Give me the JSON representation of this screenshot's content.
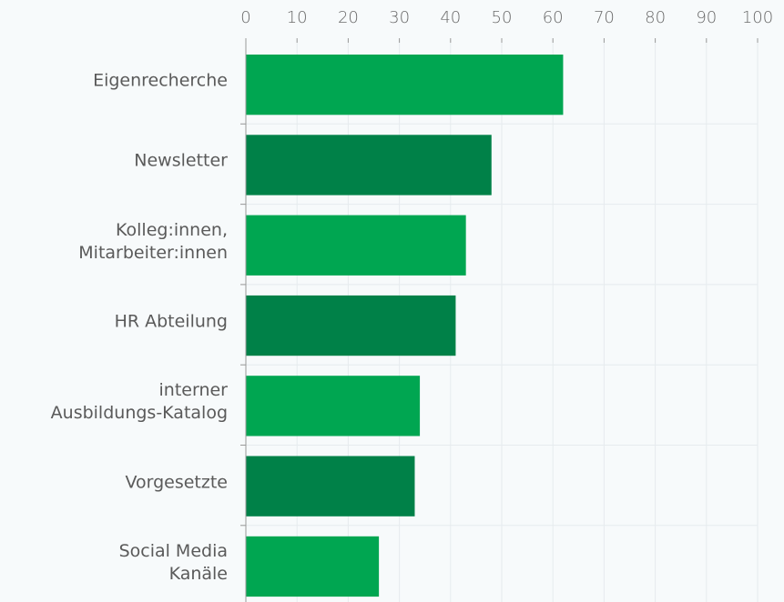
{
  "chart_data": {
    "type": "bar",
    "orientation": "horizontal",
    "categories": [
      "Eigenrecherche",
      "Newsletter",
      "Kolleg:innen,\nMitarbeiter:innen",
      "HR Abteilung",
      "interner\nAusbildungs-Katalog",
      "Vorgesetzte",
      "Social Media\nKanäle"
    ],
    "values": [
      62,
      48,
      43,
      41,
      34,
      33,
      26
    ],
    "colors": [
      "#00a651",
      "#008148",
      "#00a651",
      "#008148",
      "#00a651",
      "#008148",
      "#00a651"
    ],
    "xlim": [
      0,
      100
    ],
    "xticks": [
      0,
      10,
      20,
      30,
      40,
      50,
      60,
      70,
      80,
      90,
      100
    ],
    "grid": true
  }
}
